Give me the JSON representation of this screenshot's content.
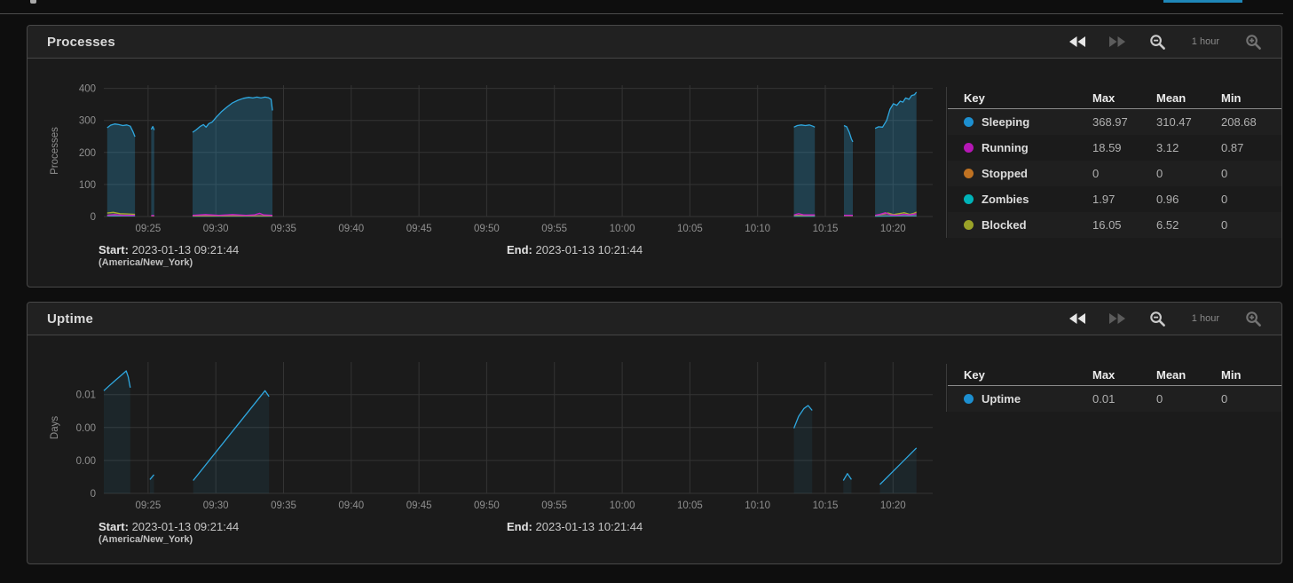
{
  "page": {
    "top_divider_color": "#4b4b4b",
    "clipped_top_button_color": "#1f87b8"
  },
  "panels": [
    {
      "title": "Processes",
      "controls": {
        "back_icon": "rewind-icon",
        "forward_icon": "fast-forward-icon",
        "zoom_out_icon": "magnifier-minus-icon",
        "interval_label": "1 hour",
        "zoom_in_icon": "magnifier-plus-icon"
      },
      "legend": {
        "headers": [
          "Key",
          "Max",
          "Mean",
          "Min"
        ],
        "rows": [
          {
            "name": "Sleeping",
            "color": "#1d8fd0",
            "max": "368.97",
            "mean": "310.47",
            "min": "208.68"
          },
          {
            "name": "Running",
            "color": "#b517b5",
            "max": "18.59",
            "mean": "3.12",
            "min": "0.87"
          },
          {
            "name": "Stopped",
            "color": "#bf7222",
            "max": "0",
            "mean": "0",
            "min": "0"
          },
          {
            "name": "Zombies",
            "color": "#00b3b8",
            "max": "1.97",
            "mean": "0.96",
            "min": "0"
          },
          {
            "name": "Blocked",
            "color": "#9aa228",
            "max": "16.05",
            "mean": "6.52",
            "min": "0"
          }
        ]
      },
      "footer": {
        "start_label": "Start:",
        "start_value": "2023-01-13 09:21:44",
        "timezone": "(America/New_York)",
        "end_label": "End:",
        "end_value": "2023-01-13 10:21:44"
      },
      "chart_data": {
        "type": "area",
        "ylabel": "Processes",
        "ylim": [
          0,
          410
        ],
        "x_domain": [
          0,
          61.2
        ],
        "grid": true,
        "y_ticks": [
          {
            "v": 0,
            "label": "0"
          },
          {
            "v": 100,
            "label": "100"
          },
          {
            "v": 200,
            "label": "200"
          },
          {
            "v": 300,
            "label": "300"
          },
          {
            "v": 400,
            "label": "400"
          }
        ],
        "x_ticks": [
          {
            "t": 3.27,
            "label": "09:25"
          },
          {
            "t": 8.27,
            "label": "09:30"
          },
          {
            "t": 13.27,
            "label": "09:35"
          },
          {
            "t": 18.27,
            "label": "09:40"
          },
          {
            "t": 23.27,
            "label": "09:45"
          },
          {
            "t": 28.27,
            "label": "09:50"
          },
          {
            "t": 33.27,
            "label": "09:55"
          },
          {
            "t": 38.27,
            "label": "10:00"
          },
          {
            "t": 43.27,
            "label": "10:05"
          },
          {
            "t": 48.27,
            "label": "10:10"
          },
          {
            "t": 53.27,
            "label": "10:15"
          },
          {
            "t": 58.27,
            "label": "10:20"
          }
        ],
        "series": [
          {
            "name": "Sleeping",
            "color": "#2fa8e0",
            "fill": "rgba(45,150,195,0.30)",
            "segments": [
              [
                [
                  0.25,
                  277
                ],
                [
                  0.5,
                  285
                ],
                [
                  0.8,
                  289
                ],
                [
                  1.1,
                  287
                ],
                [
                  1.4,
                  284
                ],
                [
                  1.7,
                  286
                ],
                [
                  1.95,
                  282
                ],
                [
                  2.15,
                  265
                ],
                [
                  2.3,
                  249
                ]
              ],
              [
                [
                  3.5,
                  272
                ],
                [
                  3.62,
                  281
                ],
                [
                  3.72,
                  270
                ]
              ],
              [
                [
                  6.55,
                  263
                ],
                [
                  6.8,
                  270
                ],
                [
                  7.1,
                  281
                ],
                [
                  7.35,
                  287
                ],
                [
                  7.55,
                  279
                ],
                [
                  7.75,
                  290
                ],
                [
                  8.0,
                  295
                ],
                [
                  8.3,
                  310
                ],
                [
                  8.7,
                  328
                ],
                [
                  9.1,
                  342
                ],
                [
                  9.5,
                  355
                ],
                [
                  9.9,
                  363
                ],
                [
                  10.3,
                  369
                ],
                [
                  10.7,
                  372
                ],
                [
                  11.0,
                  370
                ],
                [
                  11.3,
                  373
                ],
                [
                  11.6,
                  370
                ],
                [
                  11.9,
                  373
                ],
                [
                  12.15,
                  371
                ],
                [
                  12.35,
                  366
                ],
                [
                  12.45,
                  331
                ]
              ],
              [
                [
                  50.95,
                  279
                ],
                [
                  51.2,
                  284
                ],
                [
                  51.5,
                  286
                ],
                [
                  51.8,
                  284
                ],
                [
                  52.1,
                  286
                ],
                [
                  52.35,
                  282
                ],
                [
                  52.5,
                  279
                ]
              ],
              [
                [
                  54.65,
                  284
                ],
                [
                  54.85,
                  280
                ],
                [
                  55.05,
                  262
                ],
                [
                  55.2,
                  242
                ],
                [
                  55.3,
                  233
                ]
              ],
              [
                [
                  56.95,
                  275
                ],
                [
                  57.2,
                  280
                ],
                [
                  57.5,
                  279
                ],
                [
                  57.8,
                  300
                ],
                [
                  58.05,
                  335
                ],
                [
                  58.3,
                  352
                ],
                [
                  58.55,
                  347
                ],
                [
                  58.8,
                  360
                ],
                [
                  59.0,
                  357
                ],
                [
                  59.2,
                  370
                ],
                [
                  59.45,
                  366
                ],
                [
                  59.65,
                  378
                ],
                [
                  59.85,
                  380
                ],
                [
                  60.0,
                  388
                ]
              ]
            ]
          },
          {
            "name": "Zombies",
            "color": "#00c4ca",
            "fill": "rgba(0,190,200,0.18)",
            "segments": [
              [
                [
                  0.25,
                  2
                ],
                [
                  2.3,
                  2
                ]
              ],
              [
                [
                  6.55,
                  1
                ],
                [
                  12.45,
                  1
                ]
              ],
              [
                [
                  50.95,
                  1
                ],
                [
                  52.5,
                  1
                ]
              ],
              [
                [
                  56.95,
                  1
                ],
                [
                  60.0,
                  2
                ]
              ]
            ]
          },
          {
            "name": "Blocked",
            "color": "#a9ae2f",
            "fill": "rgba(170,175,45,0.22)",
            "segments": [
              [
                [
                  0.25,
                  11
                ],
                [
                  0.7,
                  13
                ],
                [
                  1.2,
                  9
                ],
                [
                  1.8,
                  8
                ],
                [
                  2.3,
                  7
                ]
              ],
              [
                [
                  3.5,
                  2
                ],
                [
                  3.72,
                  2
                ]
              ],
              [
                [
                  6.55,
                  2
                ],
                [
                  9.0,
                  2
                ],
                [
                  12.45,
                  2
                ]
              ],
              [
                [
                  50.95,
                  4
                ],
                [
                  51.7,
                  3
                ],
                [
                  52.5,
                  4
                ]
              ],
              [
                [
                  54.65,
                  3
                ],
                [
                  55.3,
                  3
                ]
              ],
              [
                [
                  56.95,
                  3
                ],
                [
                  57.5,
                  7
                ],
                [
                  57.9,
                  11
                ],
                [
                  58.3,
                  6
                ],
                [
                  58.7,
                  9
                ],
                [
                  59.1,
                  12
                ],
                [
                  59.5,
                  7
                ],
                [
                  59.8,
                  10
                ],
                [
                  60.0,
                  14
                ]
              ]
            ]
          },
          {
            "name": "Running",
            "color": "#c81ec8",
            "fill": "rgba(200,30,200,0.25)",
            "segments": [
              [
                [
                  0.25,
                  4
                ],
                [
                  0.8,
                  6
                ],
                [
                  1.4,
                  4
                ],
                [
                  2.3,
                  4
                ]
              ],
              [
                [
                  3.5,
                  3
                ],
                [
                  3.72,
                  3
                ]
              ],
              [
                [
                  6.55,
                  4
                ],
                [
                  7.5,
                  6
                ],
                [
                  8.5,
                  4
                ],
                [
                  9.5,
                  6
                ],
                [
                  10.5,
                  4
                ],
                [
                  11.1,
                  5
                ],
                [
                  11.5,
                  10
                ],
                [
                  11.8,
                  5
                ],
                [
                  12.45,
                  4
                ]
              ],
              [
                [
                  50.95,
                  5
                ],
                [
                  51.3,
                  9
                ],
                [
                  51.7,
                  5
                ],
                [
                  52.5,
                  5
                ]
              ],
              [
                [
                  54.65,
                  4
                ],
                [
                  55.3,
                  4
                ]
              ],
              [
                [
                  56.95,
                  4
                ],
                [
                  57.3,
                  7
                ],
                [
                  57.7,
                  12
                ],
                [
                  58.1,
                  5
                ],
                [
                  58.6,
                  4
                ],
                [
                  59.1,
                  7
                ],
                [
                  59.5,
                  5
                ],
                [
                  60.0,
                  9
                ]
              ]
            ]
          },
          {
            "name": "Stopped",
            "color": "#bf7222",
            "fill": "none",
            "segments": []
          }
        ]
      }
    },
    {
      "title": "Uptime",
      "controls": {
        "back_icon": "rewind-icon",
        "forward_icon": "fast-forward-icon",
        "zoom_out_icon": "magnifier-minus-icon",
        "interval_label": "1 hour",
        "zoom_in_icon": "magnifier-plus-icon"
      },
      "legend": {
        "headers": [
          "Key",
          "Max",
          "Mean",
          "Min"
        ],
        "rows": [
          {
            "name": "Uptime",
            "color": "#1d8fd0",
            "max": "0.01",
            "mean": "0",
            "min": "0"
          }
        ]
      },
      "footer": {
        "start_label": "Start:",
        "start_value": "2023-01-13 09:21:44",
        "timezone": "(America/New_York)",
        "end_label": "End:",
        "end_value": "2023-01-13 10:21:44"
      },
      "chart_data": {
        "type": "line",
        "ylabel": "Days",
        "ylim": [
          0,
          0.0133
        ],
        "x_domain": [
          0,
          61.2
        ],
        "grid": true,
        "y_ticks": [
          {
            "v": 0,
            "label": "0"
          },
          {
            "v": 0.00333,
            "label": "0.00"
          },
          {
            "v": 0.00667,
            "label": "0.00"
          },
          {
            "v": 0.01,
            "label": "0.01"
          }
        ],
        "x_ticks": [
          {
            "t": 3.27,
            "label": "09:25"
          },
          {
            "t": 8.27,
            "label": "09:30"
          },
          {
            "t": 13.27,
            "label": "09:35"
          },
          {
            "t": 18.27,
            "label": "09:40"
          },
          {
            "t": 23.27,
            "label": "09:45"
          },
          {
            "t": 28.27,
            "label": "09:50"
          },
          {
            "t": 33.27,
            "label": "09:55"
          },
          {
            "t": 38.27,
            "label": "10:00"
          },
          {
            "t": 43.27,
            "label": "10:05"
          },
          {
            "t": 48.27,
            "label": "10:10"
          },
          {
            "t": 53.27,
            "label": "10:15"
          },
          {
            "t": 58.27,
            "label": "10:20"
          }
        ],
        "series": [
          {
            "name": "Uptime",
            "color": "#2fa8e0",
            "fill": "rgba(45,150,195,0.09)",
            "segments": [
              [
                [
                  0,
                  0.0104
                ],
                [
                  0.4,
                  0.0109
                ],
                [
                  0.9,
                  0.0115
                ],
                [
                  1.4,
                  0.0121
                ],
                [
                  1.65,
                  0.0124
                ],
                [
                  1.8,
                  0.0118
                ],
                [
                  1.95,
                  0.0107
                ]
              ],
              [
                [
                  3.4,
                  0.0014
                ],
                [
                  3.7,
                  0.0019
                ]
              ],
              [
                [
                  6.6,
                  0.0013
                ],
                [
                  11.9,
                  0.0104
                ],
                [
                  12.2,
                  0.0098
                ]
              ],
              [
                [
                  50.95,
                  0.0066
                ],
                [
                  51.3,
                  0.0078
                ],
                [
                  51.7,
                  0.0086
                ],
                [
                  52.0,
                  0.0089
                ],
                [
                  52.3,
                  0.0084
                ]
              ],
              [
                [
                  54.6,
                  0.0013
                ],
                [
                  54.9,
                  0.002
                ],
                [
                  55.2,
                  0.0014
                ]
              ],
              [
                [
                  57.3,
                  0.0009
                ],
                [
                  60.0,
                  0.0046
                ]
              ]
            ]
          }
        ]
      }
    }
  ]
}
